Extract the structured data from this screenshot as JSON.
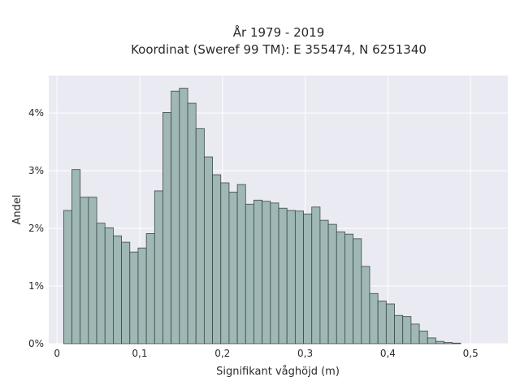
{
  "chart_data": {
    "type": "bar",
    "title_lines": [
      "År 1979 - 2019",
      "Koordinat (Sweref 99 TM): E 355474, N 6251340"
    ],
    "xlabel": "Signifikant våghöjd (m)",
    "ylabel": "Andel",
    "xlim": [
      -0.01,
      0.545
    ],
    "ylim": [
      0,
      0.0465
    ],
    "x_ticks": [
      0,
      0.1,
      0.2,
      0.3,
      0.4,
      0.5
    ],
    "x_tick_labels": [
      "0",
      "0,1",
      "0,2",
      "0,3",
      "0,4",
      "0,5"
    ],
    "y_ticks": [
      0,
      0.01,
      0.02,
      0.03,
      0.04
    ],
    "y_tick_labels": [
      "0%",
      "1%",
      "2%",
      "3%",
      "4%"
    ],
    "grid": true,
    "bin_start": 0.008,
    "bin_width": 0.01,
    "values": [
      0.0231,
      0.0302,
      0.0254,
      0.0254,
      0.0209,
      0.0201,
      0.0187,
      0.0176,
      0.0159,
      0.0166,
      0.0191,
      0.0265,
      0.0401,
      0.0438,
      0.0443,
      0.0417,
      0.0373,
      0.0324,
      0.0293,
      0.0279,
      0.0263,
      0.0276,
      0.0242,
      0.0249,
      0.0247,
      0.0244,
      0.0235,
      0.0231,
      0.023,
      0.0225,
      0.0237,
      0.0214,
      0.0207,
      0.0194,
      0.019,
      0.0182,
      0.0134,
      0.0087,
      0.0074,
      0.0069,
      0.0049,
      0.0047,
      0.0034,
      0.0022,
      0.001,
      0.0004,
      0.0002,
      0.0001
    ],
    "colors": {
      "bar_fill": "#9fb7b5",
      "bar_edge": "#3a4a48",
      "plot_bg": "#eaeaf2",
      "grid": "#ffffff"
    }
  }
}
